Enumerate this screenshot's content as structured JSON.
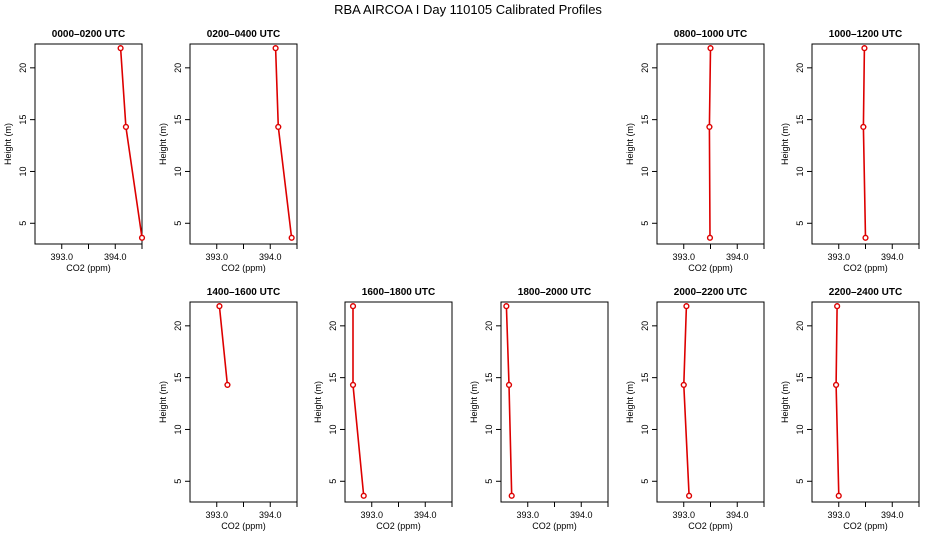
{
  "figure": {
    "title": "RBA AIRCOA I  Day 110105  Calibrated Profiles"
  },
  "style": {
    "series_color": "#dd0000",
    "axis_color": "#000000"
  },
  "axes": {
    "xlabel": "CO2 (ppm)",
    "ylabel": "Height (m)",
    "x_tick_labels": [
      "393.0",
      "394.0"
    ],
    "y_tick_labels": [
      "5",
      "10",
      "15",
      "20"
    ]
  },
  "chart_data": [
    {
      "type": "line",
      "title": "0000–0200 UTC",
      "xlabel": "CO2 (ppm)",
      "ylabel": "Height (m)",
      "xlim": [
        392.5,
        394.5
      ],
      "ylim": [
        3,
        22.3
      ],
      "x_ticks": [
        393.0,
        393.5,
        394.0,
        394.5
      ],
      "y_ticks": [
        5,
        10,
        15,
        20
      ],
      "series": [
        {
          "x": [
            394.1,
            394.2,
            394.5
          ],
          "y": [
            21.9,
            14.3,
            3.6
          ]
        }
      ]
    },
    {
      "type": "line",
      "title": "0200–0400 UTC",
      "xlabel": "CO2 (ppm)",
      "ylabel": "Height (m)",
      "xlim": [
        392.5,
        394.5
      ],
      "ylim": [
        3,
        22.3
      ],
      "x_ticks": [
        393.0,
        393.5,
        394.0,
        394.5
      ],
      "y_ticks": [
        5,
        10,
        15,
        20
      ],
      "series": [
        {
          "x": [
            394.1,
            394.15,
            394.4
          ],
          "y": [
            21.9,
            14.3,
            3.6
          ]
        }
      ]
    },
    {
      "type": "line",
      "title": "0800–1000 UTC",
      "xlabel": "CO2 (ppm)",
      "ylabel": "Height (m)",
      "xlim": [
        392.5,
        394.5
      ],
      "ylim": [
        3,
        22.3
      ],
      "x_ticks": [
        393.0,
        393.5,
        394.0,
        394.5
      ],
      "y_ticks": [
        5,
        10,
        15,
        20
      ],
      "series": [
        {
          "x": [
            393.5,
            393.48,
            393.49
          ],
          "y": [
            21.9,
            14.3,
            3.6
          ]
        }
      ]
    },
    {
      "type": "line",
      "title": "1000–1200 UTC",
      "xlabel": "CO2 (ppm)",
      "ylabel": "Height (m)",
      "xlim": [
        392.5,
        394.5
      ],
      "ylim": [
        3,
        22.3
      ],
      "x_ticks": [
        393.0,
        393.5,
        394.0,
        394.5
      ],
      "y_ticks": [
        5,
        10,
        15,
        20
      ],
      "series": [
        {
          "x": [
            393.48,
            393.46,
            393.5
          ],
          "y": [
            21.9,
            14.3,
            3.6
          ]
        }
      ]
    },
    {
      "type": "line",
      "title": "1400–1600 UTC",
      "xlabel": "CO2 (ppm)",
      "ylabel": "Height (m)",
      "xlim": [
        392.5,
        394.5
      ],
      "ylim": [
        3,
        22.3
      ],
      "x_ticks": [
        393.0,
        393.5,
        394.0,
        394.5
      ],
      "y_ticks": [
        5,
        10,
        15,
        20
      ],
      "series": [
        {
          "x": [
            393.05,
            393.2
          ],
          "y": [
            21.9,
            14.3
          ]
        }
      ]
    },
    {
      "type": "line",
      "title": "1600–1800 UTC",
      "xlabel": "CO2 (ppm)",
      "ylabel": "Height (m)",
      "xlim": [
        392.5,
        394.5
      ],
      "ylim": [
        3,
        22.3
      ],
      "x_ticks": [
        393.0,
        393.5,
        394.0,
        394.5
      ],
      "y_ticks": [
        5,
        10,
        15,
        20
      ],
      "series": [
        {
          "x": [
            392.65,
            392.65,
            392.85
          ],
          "y": [
            21.9,
            14.3,
            3.6
          ]
        }
      ]
    },
    {
      "type": "line",
      "title": "1800–2000 UTC",
      "xlabel": "CO2 (ppm)",
      "ylabel": "Height (m)",
      "xlim": [
        392.5,
        394.5
      ],
      "ylim": [
        3,
        22.3
      ],
      "x_ticks": [
        393.0,
        393.5,
        394.0,
        394.5
      ],
      "y_ticks": [
        5,
        10,
        15,
        20
      ],
      "series": [
        {
          "x": [
            392.6,
            392.65,
            392.7
          ],
          "y": [
            21.9,
            14.3,
            3.6
          ]
        }
      ]
    },
    {
      "type": "line",
      "title": "2000–2200 UTC",
      "xlabel": "CO2 (ppm)",
      "ylabel": "Height (m)",
      "xlim": [
        392.5,
        394.5
      ],
      "ylim": [
        3,
        22.3
      ],
      "x_ticks": [
        393.0,
        393.5,
        394.0,
        394.5
      ],
      "y_ticks": [
        5,
        10,
        15,
        20
      ],
      "series": [
        {
          "x": [
            393.05,
            393.0,
            393.1
          ],
          "y": [
            21.9,
            14.3,
            3.6
          ]
        }
      ]
    },
    {
      "type": "line",
      "title": "2200–2400 UTC",
      "xlabel": "CO2 (ppm)",
      "ylabel": "Height (m)",
      "xlim": [
        392.5,
        394.5
      ],
      "ylim": [
        3,
        22.3
      ],
      "x_ticks": [
        393.0,
        393.5,
        394.0,
        394.5
      ],
      "y_ticks": [
        5,
        10,
        15,
        20
      ],
      "series": [
        {
          "x": [
            392.97,
            392.95,
            393.0
          ],
          "y": [
            21.9,
            14.3,
            3.6
          ]
        }
      ]
    }
  ]
}
